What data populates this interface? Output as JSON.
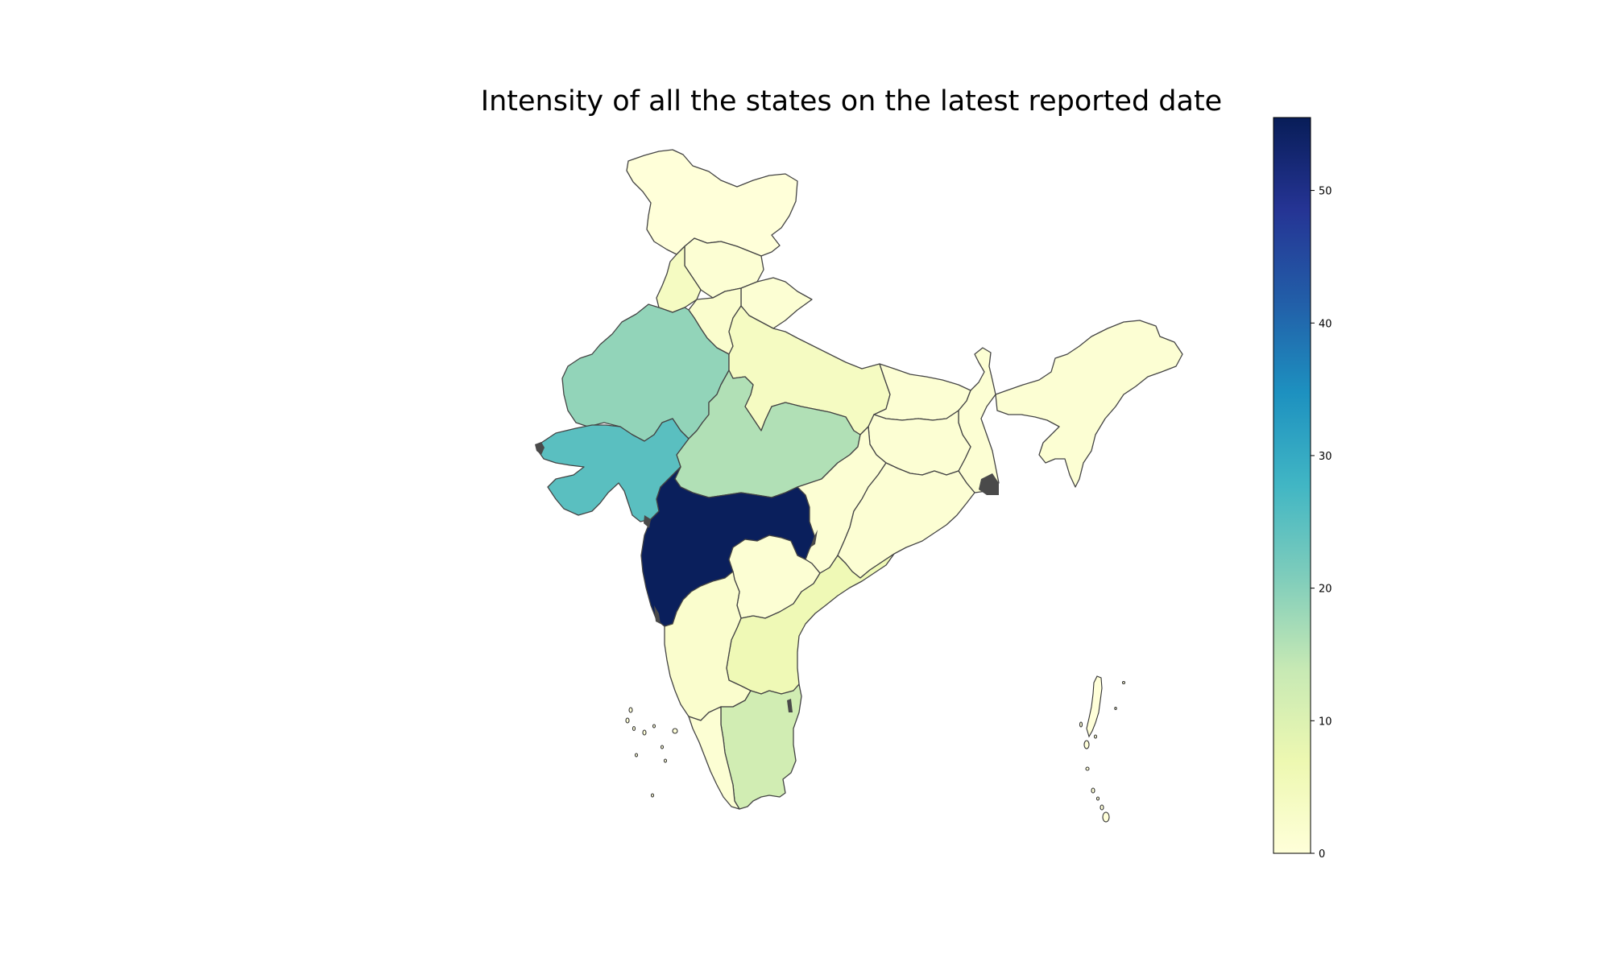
{
  "title": "Intensity of all the states on the latest reported date",
  "map": {
    "type": "choropleth",
    "region": "India",
    "colormap": "YlGnBu",
    "border_color": "#444444",
    "states": [
      {
        "name": "Jammu and Kashmir",
        "value": 0
      },
      {
        "name": "Himachal Pradesh",
        "value": 1
      },
      {
        "name": "Punjab",
        "value": 4
      },
      {
        "name": "Uttarakhand",
        "value": 1
      },
      {
        "name": "Haryana",
        "value": 2
      },
      {
        "name": "Rajasthan",
        "value": 19
      },
      {
        "name": "Uttar Pradesh",
        "value": 4
      },
      {
        "name": "Bihar",
        "value": 1
      },
      {
        "name": "Northeast",
        "value": 1
      },
      {
        "name": "West Bengal",
        "value": 1
      },
      {
        "name": "Jharkhand",
        "value": 1
      },
      {
        "name": "Madhya Pradesh",
        "value": 16
      },
      {
        "name": "Gujarat",
        "value": 25
      },
      {
        "name": "Maharashtra",
        "value": 55
      },
      {
        "name": "Chhattisgarh",
        "value": 1
      },
      {
        "name": "Odisha",
        "value": 1
      },
      {
        "name": "Telangana",
        "value": 1
      },
      {
        "name": "Andhra Pradesh",
        "value": 6
      },
      {
        "name": "Karnataka",
        "value": 2
      },
      {
        "name": "Kerala",
        "value": 1
      },
      {
        "name": "Tamil Nadu",
        "value": 12
      }
    ]
  },
  "colorbar": {
    "min": 0,
    "max": 55.5,
    "ticks": [
      {
        "value": 0,
        "label": "0"
      },
      {
        "value": 10,
        "label": "10"
      },
      {
        "value": 20,
        "label": "20"
      },
      {
        "value": 30,
        "label": "30"
      },
      {
        "value": 40,
        "label": "40"
      },
      {
        "value": 50,
        "label": "50"
      }
    ],
    "stops": [
      "#ffffd9",
      "#edf8b1",
      "#c7e9b4",
      "#7fcdbb",
      "#41b6c4",
      "#1d91c0",
      "#225ea8",
      "#253494",
      "#081d58"
    ]
  }
}
